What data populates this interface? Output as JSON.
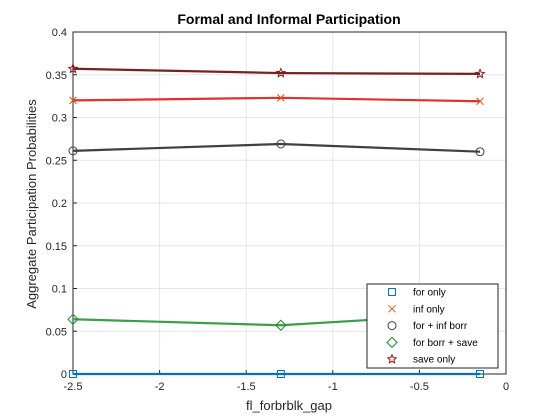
{
  "chart_data": {
    "type": "line",
    "title": "Formal and Informal Participation",
    "xlabel": "fl_forbrblk_gap",
    "ylabel": "Aggregate Participation Probabilities",
    "xlim": [
      -2.5,
      0
    ],
    "ylim": [
      0,
      0.4
    ],
    "x_ticks": [
      "-2.5",
      "-2",
      "-1.5",
      "-1",
      "-0.5",
      "0"
    ],
    "y_ticks": [
      "0",
      "0.05",
      "0.1",
      "0.15",
      "0.2",
      "0.25",
      "0.3",
      "0.35",
      "0.4"
    ],
    "x_tick_values": [
      -2.5,
      -2,
      -1.5,
      -1,
      -0.5,
      0
    ],
    "y_tick_values": [
      0,
      0.05,
      0.1,
      0.15,
      0.2,
      0.25,
      0.3,
      0.35,
      0.4
    ],
    "grid": true,
    "legend_position": "bottom-right",
    "series": [
      {
        "name": "for only",
        "marker": "square",
        "marker_color": "#0072BD",
        "line_color": "#0072BD",
        "x": [
          -2.5,
          -1.3,
          -0.15
        ],
        "y": [
          0.0,
          0.0,
          0.0
        ]
      },
      {
        "name": "inf only",
        "marker": "x",
        "marker_color": "#D95319",
        "line_color": "#E03030",
        "x": [
          -2.5,
          -1.3,
          -0.15
        ],
        "y": [
          0.32,
          0.323,
          0.319
        ]
      },
      {
        "name": "for + inf borr",
        "marker": "circle",
        "marker_color": "#404040",
        "line_color": "#404040",
        "x": [
          -2.5,
          -1.3,
          -0.15
        ],
        "y": [
          0.261,
          0.269,
          0.26
        ]
      },
      {
        "name": "for borr + save",
        "marker": "diamond",
        "marker_color": "#1E8C2E",
        "line_color": "#3A9E4A",
        "x": [
          -2.5,
          -1.3,
          -0.15
        ],
        "y": [
          0.064,
          0.057,
          0.071
        ]
      },
      {
        "name": "save only",
        "marker": "star",
        "marker_color": "#8B1A1A",
        "line_color": "#7A2020",
        "x": [
          -2.5,
          -1.3,
          -0.15
        ],
        "y": [
          0.357,
          0.352,
          0.351
        ]
      }
    ]
  }
}
